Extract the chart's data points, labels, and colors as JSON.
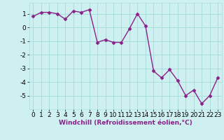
{
  "x": [
    0,
    1,
    2,
    3,
    4,
    5,
    6,
    7,
    8,
    9,
    10,
    11,
    12,
    13,
    14,
    15,
    16,
    17,
    18,
    19,
    20,
    21,
    22,
    23
  ],
  "y": [
    0.8,
    1.1,
    1.1,
    1.0,
    0.6,
    1.2,
    1.1,
    1.3,
    -1.1,
    -0.9,
    -1.1,
    -1.1,
    -0.1,
    1.0,
    0.1,
    -3.2,
    -3.7,
    -3.1,
    -3.9,
    -5.0,
    -4.6,
    -5.6,
    -5.0,
    -3.7
  ],
  "line_color": "#882288",
  "marker": "D",
  "marker_size": 2.5,
  "bg_color": "#cff0f0",
  "grid_color": "#aadddd",
  "xlabel": "Windchill (Refroidissement éolien,°C)",
  "xlim": [
    -0.5,
    23.5
  ],
  "ylim": [
    -6.0,
    1.8
  ],
  "yticks": [
    1,
    0,
    -1,
    -2,
    -3,
    -4,
    -5
  ],
  "xticks": [
    0,
    1,
    2,
    3,
    4,
    5,
    6,
    7,
    8,
    9,
    10,
    11,
    12,
    13,
    14,
    15,
    16,
    17,
    18,
    19,
    20,
    21,
    22,
    23
  ],
  "xlabel_fontsize": 6.5,
  "tick_fontsize": 6.5,
  "line_width": 1.0
}
